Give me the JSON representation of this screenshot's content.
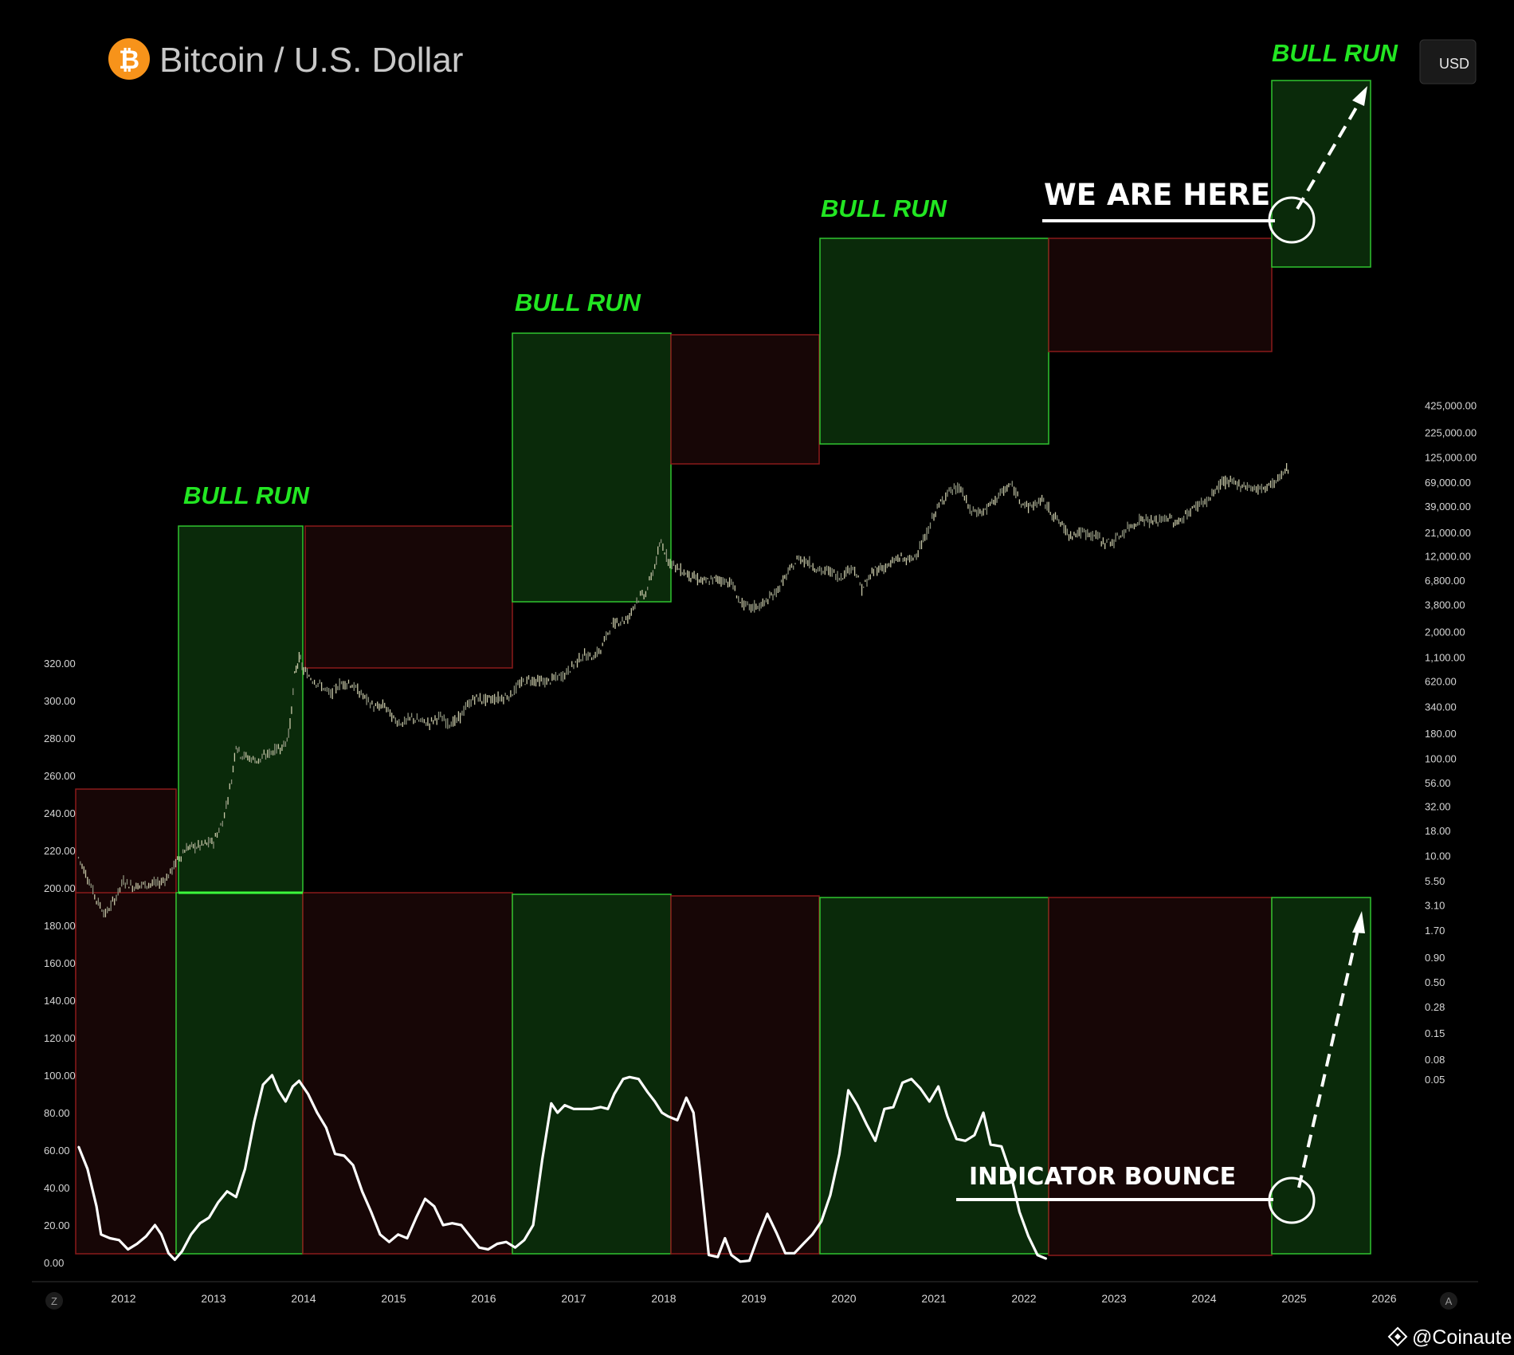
{
  "chart_data": {
    "type": "line",
    "title": "Bitcoin / U.S. Dollar",
    "currency_button": "USD",
    "left_axis": {
      "ticks": [
        "320.00",
        "300.00",
        "280.00",
        "260.00",
        "240.00",
        "220.00",
        "200.00",
        "180.00",
        "160.00",
        "140.00",
        "120.00",
        "100.00",
        "80.00",
        "60.00",
        "40.00",
        "20.00",
        "0.00"
      ],
      "ylim": [
        0,
        320
      ]
    },
    "right_axis": {
      "scale": "log",
      "ticks": [
        "425,000.00",
        "225,000.00",
        "125,000.00",
        "69,000.00",
        "39,000.00",
        "21,000.00",
        "12,000.00",
        "6,800.00",
        "3,800.00",
        "2,000.00",
        "1,100.00",
        "620.00",
        "340.00",
        "180.00",
        "100.00",
        "56.00",
        "32.00",
        "18.00",
        "10.00",
        "5.50",
        "3.10",
        "1.70",
        "0.90",
        "0.50",
        "0.28",
        "0.15",
        "0.08",
        "0.05"
      ]
    },
    "x_axis": {
      "ticks": [
        "2012",
        "2013",
        "2014",
        "2015",
        "2016",
        "2017",
        "2018",
        "2019",
        "2020",
        "2021",
        "2022",
        "2023",
        "2024",
        "2025",
        "2026"
      ],
      "xlim": [
        2011.5,
        2026.0
      ]
    },
    "series": [
      {
        "style": "candles",
        "axis": "right",
        "points": [
          [
            2011.5,
            9.5
          ],
          [
            2011.6,
            6
          ],
          [
            2011.7,
            3.5
          ],
          [
            2011.8,
            2.5
          ],
          [
            2011.9,
            3.5
          ],
          [
            2012.0,
            5.5
          ],
          [
            2012.1,
            4.8
          ],
          [
            2012.2,
            5
          ],
          [
            2012.4,
            5.2
          ],
          [
            2012.5,
            6.2
          ],
          [
            2012.6,
            9
          ],
          [
            2012.7,
            12
          ],
          [
            2012.85,
            12.5
          ],
          [
            2013.0,
            14
          ],
          [
            2013.1,
            22
          ],
          [
            2013.2,
            60
          ],
          [
            2013.25,
            140
          ],
          [
            2013.3,
            110
          ],
          [
            2013.4,
            100
          ],
          [
            2013.5,
            95
          ],
          [
            2013.6,
            110
          ],
          [
            2013.7,
            125
          ],
          [
            2013.8,
            140
          ],
          [
            2013.85,
            220
          ],
          [
            2013.9,
            700
          ],
          [
            2013.95,
            1100
          ],
          [
            2014.0,
            800
          ],
          [
            2014.1,
            650
          ],
          [
            2014.2,
            550
          ],
          [
            2014.3,
            450
          ],
          [
            2014.4,
            580
          ],
          [
            2014.5,
            600
          ],
          [
            2014.6,
            500
          ],
          [
            2014.7,
            400
          ],
          [
            2014.8,
            330
          ],
          [
            2014.9,
            350
          ],
          [
            2015.0,
            250
          ],
          [
            2015.1,
            230
          ],
          [
            2015.2,
            260
          ],
          [
            2015.3,
            240
          ],
          [
            2015.4,
            230
          ],
          [
            2015.5,
            270
          ],
          [
            2015.6,
            230
          ],
          [
            2015.7,
            240
          ],
          [
            2015.8,
            330
          ],
          [
            2015.9,
            420
          ],
          [
            2016.0,
            400
          ],
          [
            2016.2,
            420
          ],
          [
            2016.3,
            450
          ],
          [
            2016.4,
            580
          ],
          [
            2016.5,
            650
          ],
          [
            2016.7,
            610
          ],
          [
            2016.9,
            730
          ],
          [
            2017.0,
            920
          ],
          [
            2017.1,
            1150
          ],
          [
            2017.2,
            1100
          ],
          [
            2017.3,
            1300
          ],
          [
            2017.4,
            2200
          ],
          [
            2017.5,
            2600
          ],
          [
            2017.6,
            2700
          ],
          [
            2017.7,
            4300
          ],
          [
            2017.8,
            5000
          ],
          [
            2017.9,
            9500
          ],
          [
            2017.97,
            17000
          ],
          [
            2018.05,
            11000
          ],
          [
            2018.15,
            9000
          ],
          [
            2018.3,
            7500
          ],
          [
            2018.45,
            6500
          ],
          [
            2018.6,
            7000
          ],
          [
            2018.75,
            6400
          ],
          [
            2018.85,
            4000
          ],
          [
            2018.95,
            3500
          ],
          [
            2019.1,
            3800
          ],
          [
            2019.25,
            5200
          ],
          [
            2019.4,
            8500
          ],
          [
            2019.5,
            11500
          ],
          [
            2019.6,
            10500
          ],
          [
            2019.75,
            8300
          ],
          [
            2019.85,
            8500
          ],
          [
            2019.95,
            7200
          ],
          [
            2020.1,
            9500
          ],
          [
            2020.2,
            5500
          ],
          [
            2020.35,
            8800
          ],
          [
            2020.5,
            9500
          ],
          [
            2020.6,
            11500
          ],
          [
            2020.75,
            10800
          ],
          [
            2020.9,
            18000
          ],
          [
            2021.0,
            32000
          ],
          [
            2021.15,
            55000
          ],
          [
            2021.3,
            60000
          ],
          [
            2021.4,
            35000
          ],
          [
            2021.55,
            34000
          ],
          [
            2021.7,
            48000
          ],
          [
            2021.85,
            65000
          ],
          [
            2021.95,
            47000
          ],
          [
            2022.05,
            38000
          ],
          [
            2022.2,
            45000
          ],
          [
            2022.35,
            30000
          ],
          [
            2022.5,
            20000
          ],
          [
            2022.65,
            21000
          ],
          [
            2022.8,
            19500
          ],
          [
            2022.9,
            16500
          ],
          [
            2023.0,
            17000
          ],
          [
            2023.15,
            23000
          ],
          [
            2023.3,
            29000
          ],
          [
            2023.45,
            27000
          ],
          [
            2023.6,
            30000
          ],
          [
            2023.7,
            26000
          ],
          [
            2023.85,
            35000
          ],
          [
            2023.95,
            42000
          ],
          [
            2024.05,
            45000
          ],
          [
            2024.2,
            70000
          ],
          [
            2024.35,
            67000
          ],
          [
            2024.5,
            62000
          ],
          [
            2024.6,
            58000
          ],
          [
            2024.7,
            63000
          ],
          [
            2024.8,
            70000
          ],
          [
            2024.9,
            90000
          ],
          [
            2024.95,
            100000
          ]
        ]
      },
      {
        "style": "line",
        "axis": "left",
        "points": [
          [
            2011.5,
            62
          ],
          [
            2011.6,
            50
          ],
          [
            2011.7,
            30
          ],
          [
            2011.75,
            15
          ],
          [
            2011.85,
            13
          ],
          [
            2011.95,
            12
          ],
          [
            2012.05,
            7
          ],
          [
            2012.15,
            10
          ],
          [
            2012.25,
            14
          ],
          [
            2012.35,
            20
          ],
          [
            2012.42,
            15
          ],
          [
            2012.5,
            5
          ],
          [
            2012.57,
            1.5
          ],
          [
            2012.65,
            6
          ],
          [
            2012.75,
            15
          ],
          [
            2012.85,
            21
          ],
          [
            2012.95,
            24
          ],
          [
            2013.05,
            32
          ],
          [
            2013.15,
            38
          ],
          [
            2013.25,
            35
          ],
          [
            2013.35,
            50
          ],
          [
            2013.45,
            75
          ],
          [
            2013.55,
            95
          ],
          [
            2013.65,
            100
          ],
          [
            2013.72,
            92
          ],
          [
            2013.8,
            86
          ],
          [
            2013.88,
            94
          ],
          [
            2013.95,
            97
          ],
          [
            2014.05,
            90
          ],
          [
            2014.15,
            80
          ],
          [
            2014.25,
            72
          ],
          [
            2014.35,
            58
          ],
          [
            2014.45,
            57
          ],
          [
            2014.55,
            52
          ],
          [
            2014.65,
            38
          ],
          [
            2014.75,
            27
          ],
          [
            2014.85,
            15
          ],
          [
            2014.95,
            11
          ],
          [
            2015.05,
            15
          ],
          [
            2015.15,
            13
          ],
          [
            2015.25,
            24
          ],
          [
            2015.35,
            34
          ],
          [
            2015.45,
            30
          ],
          [
            2015.55,
            20
          ],
          [
            2015.65,
            21
          ],
          [
            2015.75,
            20
          ],
          [
            2015.85,
            14
          ],
          [
            2015.95,
            8
          ],
          [
            2016.05,
            7
          ],
          [
            2016.15,
            10
          ],
          [
            2016.25,
            11
          ],
          [
            2016.35,
            8
          ],
          [
            2016.45,
            12
          ],
          [
            2016.55,
            20
          ],
          [
            2016.65,
            55
          ],
          [
            2016.75,
            85
          ],
          [
            2016.82,
            80
          ],
          [
            2016.9,
            84
          ],
          [
            2017.0,
            82
          ],
          [
            2017.1,
            82
          ],
          [
            2017.2,
            82
          ],
          [
            2017.3,
            83
          ],
          [
            2017.38,
            82
          ],
          [
            2017.45,
            90
          ],
          [
            2017.55,
            98
          ],
          [
            2017.62,
            99
          ],
          [
            2017.72,
            98
          ],
          [
            2017.82,
            91
          ],
          [
            2017.9,
            86
          ],
          [
            2017.98,
            80
          ],
          [
            2018.05,
            78
          ],
          [
            2018.15,
            76
          ],
          [
            2018.25,
            88
          ],
          [
            2018.33,
            80
          ],
          [
            2018.4,
            50
          ],
          [
            2018.5,
            4
          ],
          [
            2018.6,
            3
          ],
          [
            2018.68,
            13
          ],
          [
            2018.75,
            4
          ],
          [
            2018.85,
            0.5
          ],
          [
            2018.95,
            1
          ],
          [
            2019.05,
            14
          ],
          [
            2019.15,
            26
          ],
          [
            2019.25,
            16
          ],
          [
            2019.35,
            5
          ],
          [
            2019.45,
            5
          ],
          [
            2019.55,
            10
          ],
          [
            2019.65,
            15
          ],
          [
            2019.75,
            22
          ],
          [
            2019.85,
            36
          ],
          [
            2019.95,
            58
          ],
          [
            2020.05,
            92
          ],
          [
            2020.15,
            84
          ],
          [
            2020.25,
            74
          ],
          [
            2020.35,
            65
          ],
          [
            2020.45,
            82
          ],
          [
            2020.55,
            83
          ],
          [
            2020.65,
            96
          ],
          [
            2020.75,
            98
          ],
          [
            2020.85,
            93
          ],
          [
            2020.95,
            86
          ],
          [
            2021.05,
            94
          ],
          [
            2021.15,
            78
          ],
          [
            2021.25,
            66
          ],
          [
            2021.35,
            65
          ],
          [
            2021.45,
            68
          ],
          [
            2021.55,
            80
          ],
          [
            2021.63,
            63
          ],
          [
            2021.75,
            62
          ],
          [
            2021.85,
            48
          ],
          [
            2021.95,
            27
          ],
          [
            2022.05,
            14
          ],
          [
            2022.15,
            4
          ],
          [
            2022.25,
            2
          ]
        ]
      }
    ],
    "bull_run_label": "BULL RUN",
    "annotations": {
      "we_are_here": "WE ARE HERE",
      "indicator_bounce": "INDICATOR BOUNCE"
    },
    "watermark": "@Coinaute",
    "bottom_left_button": "Z",
    "bottom_right_button": "A",
    "colors": {
      "bull": "#22e622",
      "bear": "#3a0a0a",
      "bull_fill": "#0a2a0a",
      "line": "#ffffff"
    }
  }
}
